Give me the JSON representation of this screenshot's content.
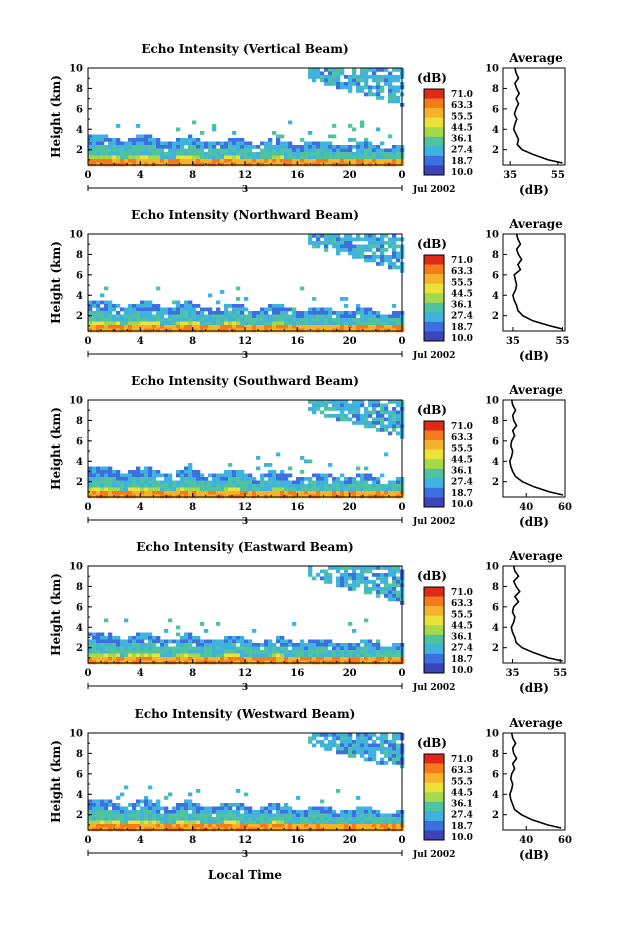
{
  "footer": {
    "xlabel": "Local Time"
  },
  "colorbar": {
    "unit": "(dB)",
    "labels": [
      "71.0",
      "63.3",
      "55.5",
      "44.5",
      "36.1",
      "27.4",
      "18.7",
      "10.0"
    ],
    "colors": [
      "#e02a18",
      "#f57a1c",
      "#f7b22a",
      "#eae13a",
      "#a5d94a",
      "#4fc2a0",
      "#3fb2de",
      "#3c6fe0",
      "#3b44b8"
    ]
  },
  "chart_data": [
    {
      "type": "heatmap",
      "title": "Echo Intensity (Vertical Beam)",
      "ylabel": "Height (km)",
      "xlabel": "Local Time",
      "x_ticks": [
        "0",
        "4",
        "8",
        "12",
        "16",
        "20",
        "0"
      ],
      "y_ticks": [
        "2",
        "4",
        "6",
        "8",
        "10"
      ],
      "xlim": [
        0,
        24
      ],
      "ylim": [
        0.5,
        10
      ],
      "date_label": "Jul 2002",
      "day_label": "3",
      "colorbar_unit": "(dB)",
      "colorbar_labels": [
        "71.0",
        "63.3",
        "55.5",
        "44.5",
        "36.1",
        "27.4",
        "18.7",
        "10.0"
      ],
      "colorbar_range": [
        10.0,
        71.0
      ],
      "profile": {
        "title": "Average",
        "xlabel": "(dB)",
        "x_ticks": [
          "35",
          "55"
        ],
        "xlim": [
          32,
          58
        ],
        "ylim": [
          0.5,
          10
        ],
        "y_ticks": [
          "2",
          "4",
          "6",
          "8",
          "10"
        ],
        "heights": [
          0.7,
          1.0,
          1.5,
          2.0,
          2.5,
          3.0,
          3.5,
          4.0,
          4.5,
          5.0,
          5.5,
          6.0,
          6.5,
          7.0,
          7.5,
          8.0,
          8.5,
          9.0,
          9.5,
          10.0
        ],
        "values": [
          57,
          51,
          45,
          40,
          38,
          38.5,
          37.5,
          36.5,
          37,
          37.8,
          36.8,
          37.5,
          38.5,
          37.5,
          38.8,
          37.7,
          37,
          38.5,
          37.5,
          37
        ]
      }
    },
    {
      "type": "heatmap",
      "title": "Echo Intensity (Northward Beam)",
      "ylabel": "Height (km)",
      "xlabel": "Local Time",
      "x_ticks": [
        "0",
        "4",
        "8",
        "12",
        "16",
        "20",
        "0"
      ],
      "y_ticks": [
        "2",
        "4",
        "6",
        "8",
        "10"
      ],
      "xlim": [
        0,
        24
      ],
      "ylim": [
        0.5,
        10
      ],
      "date_label": "Jul 2002",
      "day_label": "3",
      "colorbar_unit": "(dB)",
      "colorbar_labels": [
        "71.0",
        "63.3",
        "55.5",
        "44.5",
        "36.1",
        "27.4",
        "18.7",
        "10.0"
      ],
      "colorbar_range": [
        10.0,
        71.0
      ],
      "profile": {
        "title": "Average",
        "xlabel": "(dB)",
        "x_ticks": [
          "35",
          "55"
        ],
        "xlim": [
          31,
          56
        ],
        "ylim": [
          0.5,
          10
        ],
        "y_ticks": [
          "2",
          "4",
          "6",
          "8",
          "10"
        ],
        "heights": [
          0.7,
          1.0,
          1.5,
          2.0,
          2.5,
          3.0,
          3.5,
          4.0,
          4.5,
          5.0,
          5.5,
          6.0,
          6.5,
          7.0,
          7.5,
          8.0,
          8.5,
          9.0,
          9.5,
          10.0
        ],
        "values": [
          55,
          50,
          43,
          39,
          37,
          36.5,
          35.5,
          35,
          36,
          36.5,
          36,
          35.5,
          38,
          37,
          38.5,
          37.2,
          36.5,
          38,
          37,
          36.5
        ]
      }
    },
    {
      "type": "heatmap",
      "title": "Echo Intensity (Southward Beam)",
      "ylabel": "Height (km)",
      "xlabel": "Local Time",
      "x_ticks": [
        "0",
        "4",
        "8",
        "12",
        "16",
        "20",
        "0"
      ],
      "y_ticks": [
        "2",
        "4",
        "6",
        "8",
        "10"
      ],
      "xlim": [
        0,
        24
      ],
      "ylim": [
        0.5,
        10
      ],
      "date_label": "Jul 2002",
      "day_label": "3",
      "colorbar_unit": "(dB)",
      "colorbar_labels": [
        "71.0",
        "63.3",
        "55.5",
        "44.5",
        "36.1",
        "27.4",
        "18.7",
        "10.0"
      ],
      "colorbar_range": [
        10.0,
        71.0
      ],
      "profile": {
        "title": "Average",
        "xlabel": "(dB)",
        "x_ticks": [
          "40",
          "60"
        ],
        "xlim": [
          28,
          60
        ],
        "ylim": [
          0.5,
          10
        ],
        "y_ticks": [
          "2",
          "4",
          "6",
          "8",
          "10"
        ],
        "heights": [
          0.7,
          1.0,
          1.5,
          2.0,
          2.5,
          3.0,
          3.5,
          4.0,
          4.5,
          5.0,
          5.5,
          6.0,
          6.5,
          7.0,
          7.5,
          8.0,
          8.5,
          9.0,
          9.5,
          10.0
        ],
        "values": [
          59,
          52,
          44,
          38,
          34.5,
          33,
          32,
          31.5,
          32.5,
          33,
          32,
          32.5,
          34,
          33,
          35,
          33.5,
          33,
          34.5,
          33,
          32.5
        ]
      }
    },
    {
      "type": "heatmap",
      "title": "Echo Intensity (Eastward Beam)",
      "ylabel": "Height (km)",
      "xlabel": "Local Time",
      "x_ticks": [
        "0",
        "4",
        "8",
        "12",
        "16",
        "20",
        "0"
      ],
      "y_ticks": [
        "2",
        "4",
        "6",
        "8",
        "10"
      ],
      "xlim": [
        0,
        24
      ],
      "ylim": [
        0.5,
        10
      ],
      "date_label": "Jul 2002",
      "day_label": "3",
      "colorbar_unit": "(dB)",
      "colorbar_labels": [
        "71.0",
        "63.3",
        "55.5",
        "44.5",
        "36.1",
        "27.4",
        "18.7",
        "10.0"
      ],
      "colorbar_range": [
        10.0,
        71.0
      ],
      "profile": {
        "title": "Average",
        "xlabel": "(dB)",
        "x_ticks": [
          "35",
          "55"
        ],
        "xlim": [
          31,
          57
        ],
        "ylim": [
          0.5,
          10
        ],
        "y_ticks": [
          "2",
          "4",
          "6",
          "8",
          "10"
        ],
        "heights": [
          0.7,
          1.0,
          1.5,
          2.0,
          2.5,
          3.0,
          3.5,
          4.0,
          4.5,
          5.0,
          5.5,
          6.0,
          6.5,
          7.0,
          7.5,
          8.0,
          8.5,
          9.0,
          9.5,
          10.0
        ],
        "values": [
          56,
          50,
          44,
          39,
          36.5,
          36,
          35,
          34.5,
          35.5,
          36,
          35,
          35.5,
          37.5,
          36,
          38,
          36.5,
          35.5,
          37.5,
          36,
          35.5
        ]
      }
    },
    {
      "type": "heatmap",
      "title": "Echo Intensity (Westward Beam)",
      "ylabel": "Height (km)",
      "xlabel": "Local Time",
      "x_ticks": [
        "0",
        "4",
        "8",
        "12",
        "16",
        "20",
        "0"
      ],
      "y_ticks": [
        "2",
        "4",
        "6",
        "8",
        "10"
      ],
      "xlim": [
        0,
        24
      ],
      "ylim": [
        0.5,
        10
      ],
      "date_label": "Jul 2002",
      "day_label": "3",
      "colorbar_unit": "(dB)",
      "colorbar_labels": [
        "71.0",
        "63.3",
        "55.5",
        "44.5",
        "36.1",
        "27.4",
        "18.7",
        "10.0"
      ],
      "colorbar_range": [
        10.0,
        71.0
      ],
      "profile": {
        "title": "Average",
        "xlabel": "(dB)",
        "x_ticks": [
          "40",
          "60"
        ],
        "xlim": [
          28,
          60
        ],
        "ylim": [
          0.5,
          10
        ],
        "y_ticks": [
          "2",
          "4",
          "6",
          "8",
          "10"
        ],
        "heights": [
          0.7,
          1.0,
          1.5,
          2.0,
          2.5,
          3.0,
          3.5,
          4.0,
          4.5,
          5.0,
          5.5,
          6.0,
          6.5,
          7.0,
          7.5,
          8.0,
          8.5,
          9.0,
          9.5,
          10.0
        ],
        "values": [
          58,
          51,
          43,
          37.5,
          34,
          33,
          32,
          31.5,
          32.5,
          33,
          32,
          32.5,
          34,
          33,
          35,
          33.5,
          33,
          34.5,
          33,
          32.5
        ]
      }
    }
  ]
}
